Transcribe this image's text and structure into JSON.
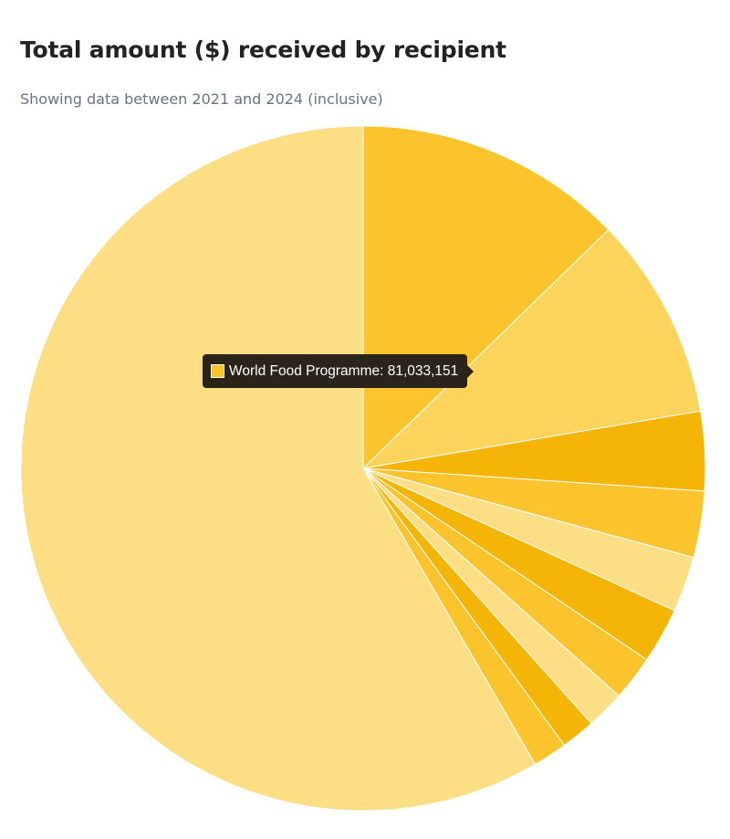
{
  "header": {
    "title": "Total amount ($) received by recipient",
    "subtitle": "Showing data between 2021 and 2024 (inclusive)"
  },
  "chart_data": {
    "type": "pie",
    "title": "Total amount ($) received by recipient",
    "subtitle": "Showing data between 2021 and 2024 (inclusive)",
    "slices": [
      {
        "value": 81033151,
        "percent": 12.6,
        "color": "#fbc42c"
      },
      {
        "percent": 9.5,
        "color": "#fcd45c"
      },
      {
        "percent": 3.7,
        "color": "#f5b506"
      },
      {
        "percent": 3.1,
        "color": "#fbc42c"
      },
      {
        "percent": 2.6,
        "color": "#fcde84"
      },
      {
        "percent": 2.6,
        "color": "#f5b506"
      },
      {
        "percent": 2.1,
        "color": "#fbc42c"
      },
      {
        "percent": 1.8,
        "color": "#fcde84"
      },
      {
        "percent": 1.6,
        "color": "#f5b506"
      },
      {
        "percent": 1.6,
        "color": "#fbc42c"
      },
      {
        "percent": 57.8,
        "color": "#fcde84"
      }
    ],
    "start_angle_deg": 0,
    "direction": "clockwise"
  },
  "tooltip": {
    "label": "World Food Programme",
    "value": "81,033,151",
    "text": "World Food Programme: 81,033,151",
    "swatch_color": "#fbc42c"
  }
}
